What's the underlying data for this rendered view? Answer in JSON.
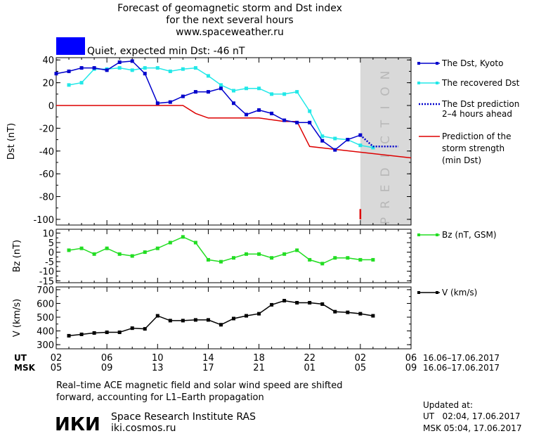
{
  "header": {
    "title_line1": "Forecast of geomagnetic storm and Dst index",
    "title_line2": "for the next several hours",
    "site": "www.spaceweather.ru"
  },
  "status": {
    "color": "#0000ff",
    "text": "Quiet, expected min Dst: -46 nT"
  },
  "prediction_band_letters": [
    "P",
    "R",
    "E",
    "D",
    "I",
    "C",
    "T",
    "I",
    "O",
    "N"
  ],
  "colors": {
    "dst_kyoto": "#0000cc",
    "dst_recovered": "#22e8e8",
    "dst_prediction": "#0000cc",
    "storm_strength": "#dd0000",
    "bz": "#22dd22",
    "speed": "#000000",
    "prediction_band": "#d9d9d9"
  },
  "time_axis": {
    "ut_label": "UT",
    "msk_label": "MSK",
    "ut_ticks": [
      "02",
      "06",
      "10",
      "14",
      "18",
      "22",
      "02",
      "06"
    ],
    "msk_ticks": [
      "05",
      "09",
      "13",
      "17",
      "21",
      "01",
      "05",
      "09"
    ],
    "ut_range_label": "16.06–17.06.2017",
    "msk_range_label": "16.06–17.06.2017",
    "x_min": 2,
    "x_max": 30,
    "prediction_start": 26
  },
  "chart_data": [
    {
      "type": "line",
      "ylabel": "Dst (nT)",
      "ylim": [
        -105,
        42
      ],
      "yticks": [
        40,
        20,
        0,
        -20,
        -40,
        -60,
        -80,
        -100
      ],
      "grid": false,
      "legend_placement": "right",
      "series": [
        {
          "name": "The Dst, Kyoto",
          "x": [
            2,
            3,
            4,
            5,
            6,
            7,
            8,
            9,
            10,
            11,
            12,
            13,
            14,
            15,
            16,
            17,
            18,
            19,
            20,
            21,
            22,
            23,
            24,
            25,
            26
          ],
          "values": [
            28,
            30,
            33,
            33,
            31,
            38,
            39,
            28,
            2,
            3,
            8,
            12,
            12,
            15,
            2,
            -8,
            -4,
            -7,
            -13,
            -15,
            -15,
            -31,
            -39,
            -30,
            -26
          ]
        },
        {
          "name": "The recovered Dst",
          "x": [
            3,
            4,
            5,
            6,
            7,
            8,
            9,
            10,
            11,
            12,
            13,
            14,
            15,
            16,
            17,
            18,
            19,
            20,
            21,
            22,
            23,
            24,
            25,
            26,
            27
          ],
          "values": [
            18,
            20,
            32,
            32,
            33,
            31,
            33,
            33,
            30,
            32,
            33,
            26,
            18,
            13,
            15,
            15,
            10,
            10,
            12,
            -5,
            -27,
            -29,
            -30,
            -35,
            -37
          ]
        },
        {
          "name": "The Dst prediction 2–4 hours ahead",
          "legend_lines": [
            "The Dst prediction",
            "2–4 hours ahead"
          ],
          "x": [
            26,
            27,
            28,
            29
          ],
          "values": [
            -26,
            -36,
            -36,
            -36
          ]
        },
        {
          "name": "Prediction of the storm strength (min Dst)",
          "legend_lines": [
            "Prediction of the",
            "storm strength",
            "(min Dst)"
          ],
          "x": [
            2,
            12,
            13,
            14,
            18,
            20,
            21,
            22,
            30
          ],
          "values": [
            0,
            0,
            -7,
            -11,
            -11,
            -14,
            -14,
            -36,
            -46
          ]
        }
      ],
      "marker": {
        "x": 26,
        "from": -91,
        "to": -100
      }
    },
    {
      "type": "line",
      "ylabel": "Bz (nT)",
      "ylim": [
        -16,
        12
      ],
      "yticks": [
        10,
        5,
        0,
        -5,
        -10,
        -15
      ],
      "grid": false,
      "series": [
        {
          "name": "Bz (nT, GSM)",
          "x": [
            3,
            4,
            5,
            6,
            7,
            8,
            9,
            10,
            11,
            12,
            13,
            14,
            15,
            16,
            17,
            18,
            19,
            20,
            21,
            22,
            23,
            24,
            25,
            26,
            27
          ],
          "values": [
            1,
            2,
            -1,
            2,
            -1,
            -2,
            0,
            2,
            5,
            8,
            5,
            -4,
            -5,
            -3,
            -1,
            -1,
            -3,
            -1,
            1,
            -4,
            -6,
            -3,
            -3,
            -4,
            -4
          ]
        }
      ]
    },
    {
      "type": "line",
      "ylabel": "V (km/s)",
      "ylim": [
        270,
        720
      ],
      "yticks": [
        700,
        600,
        500,
        400,
        300
      ],
      "grid": false,
      "series": [
        {
          "name": "V (km/s)",
          "x": [
            3,
            4,
            5,
            6,
            7,
            8,
            9,
            10,
            11,
            12,
            13,
            14,
            15,
            16,
            17,
            18,
            19,
            20,
            21,
            22,
            23,
            24,
            25,
            26,
            27
          ],
          "values": [
            365,
            375,
            385,
            390,
            390,
            420,
            415,
            510,
            475,
            475,
            480,
            480,
            445,
            490,
            510,
            525,
            590,
            620,
            605,
            605,
            595,
            540,
            535,
            525,
            510
          ]
        }
      ]
    }
  ],
  "footer": {
    "note_line1": "Real–time ACE magnetic field and solar wind speed are shifted",
    "note_line2": "forward, accounting for L1–Earth propagation",
    "logo_text": "ИКИ",
    "org_name": "Space Research Institute RAS",
    "org_site": "iki.cosmos.ru",
    "updated_label": "Updated at:",
    "updated_ut": "UT   02:04, 17.06.2017",
    "updated_msk": "MSK 05:04, 17.06.2017"
  }
}
